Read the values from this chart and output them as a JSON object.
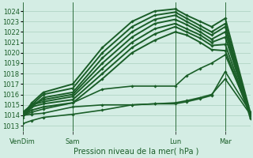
{
  "xlabel": "Pression niveau de la mer( hPa )",
  "bg_color": "#d4ede4",
  "grid_color": "#aacfbe",
  "line_color": "#1a5e28",
  "ylim": [
    1012.5,
    1024.8
  ],
  "yticks": [
    1013,
    1014,
    1015,
    1016,
    1017,
    1018,
    1019,
    1020,
    1021,
    1022,
    1023,
    1024
  ],
  "xtick_labels": [
    "VenDim",
    "Sam",
    "Lun",
    "Mar"
  ],
  "xtick_positions": [
    0.0,
    0.22,
    0.67,
    0.89
  ],
  "lines": [
    {
      "x": [
        0.0,
        0.04,
        0.09,
        0.22,
        0.35,
        0.48,
        0.58,
        0.67,
        0.72,
        0.78,
        0.83,
        0.89,
        1.0
      ],
      "y": [
        1014.0,
        1015.2,
        1016.2,
        1017.0,
        1020.5,
        1023.0,
        1024.0,
        1024.2,
        1023.6,
        1023.0,
        1022.5,
        1023.3,
        1014.3
      ],
      "lw": 1.4
    },
    {
      "x": [
        0.0,
        0.04,
        0.09,
        0.22,
        0.35,
        0.48,
        0.58,
        0.67,
        0.72,
        0.78,
        0.83,
        0.89,
        1.0
      ],
      "y": [
        1014.1,
        1015.0,
        1016.0,
        1016.6,
        1020.0,
        1022.5,
        1023.6,
        1023.9,
        1023.3,
        1022.6,
        1022.0,
        1022.8,
        1014.0
      ],
      "lw": 1.4
    },
    {
      "x": [
        0.0,
        0.04,
        0.09,
        0.22,
        0.35,
        0.48,
        0.58,
        0.67,
        0.72,
        0.78,
        0.83,
        0.89,
        1.0
      ],
      "y": [
        1013.8,
        1014.8,
        1015.7,
        1016.2,
        1019.5,
        1022.0,
        1023.2,
        1023.6,
        1023.0,
        1022.3,
        1021.7,
        1022.5,
        1013.7
      ],
      "lw": 1.4
    },
    {
      "x": [
        0.0,
        0.04,
        0.09,
        0.22,
        0.35,
        0.48,
        0.58,
        0.67,
        0.72,
        0.78,
        0.83,
        0.89,
        1.0
      ],
      "y": [
        1014.2,
        1015.0,
        1015.5,
        1016.0,
        1019.0,
        1021.5,
        1022.8,
        1023.2,
        1022.7,
        1022.0,
        1021.3,
        1022.0,
        1014.0
      ],
      "lw": 1.4
    },
    {
      "x": [
        0.0,
        0.04,
        0.09,
        0.22,
        0.35,
        0.48,
        0.58,
        0.67,
        0.72,
        0.78,
        0.83,
        0.89,
        1.0
      ],
      "y": [
        1014.3,
        1015.0,
        1015.3,
        1015.8,
        1018.5,
        1021.0,
        1022.3,
        1022.8,
        1022.3,
        1021.7,
        1021.0,
        1021.5,
        1014.1
      ],
      "lw": 1.4
    },
    {
      "x": [
        0.0,
        0.04,
        0.09,
        0.22,
        0.35,
        0.48,
        0.58,
        0.67,
        0.72,
        0.78,
        0.83,
        0.89,
        1.0
      ],
      "y": [
        1014.0,
        1014.8,
        1015.1,
        1015.5,
        1018.0,
        1020.5,
        1021.8,
        1022.5,
        1022.0,
        1021.4,
        1020.7,
        1020.8,
        1014.0
      ],
      "lw": 1.4
    },
    {
      "x": [
        0.0,
        0.04,
        0.09,
        0.22,
        0.35,
        0.48,
        0.58,
        0.67,
        0.72,
        0.78,
        0.83,
        0.89,
        1.0
      ],
      "y": [
        1014.0,
        1014.5,
        1014.8,
        1015.2,
        1017.5,
        1020.0,
        1021.2,
        1022.0,
        1021.7,
        1021.0,
        1020.3,
        1020.2,
        1014.0
      ],
      "lw": 1.4
    },
    {
      "x": [
        0.0,
        0.04,
        0.09,
        0.22,
        0.35,
        0.48,
        0.58,
        0.67,
        0.72,
        0.78,
        0.83,
        0.89,
        1.0
      ],
      "y": [
        1014.0,
        1014.3,
        1014.6,
        1015.2,
        1016.5,
        1016.8,
        1016.8,
        1016.8,
        1017.8,
        1018.5,
        1019.0,
        1019.8,
        1014.2
      ],
      "lw": 1.2
    },
    {
      "x": [
        0.0,
        0.04,
        0.09,
        0.22,
        0.35,
        0.48,
        0.58,
        0.67,
        0.72,
        0.78,
        0.83,
        0.89,
        1.0
      ],
      "y": [
        1013.2,
        1013.5,
        1013.8,
        1014.1,
        1014.5,
        1015.0,
        1015.1,
        1015.1,
        1015.3,
        1015.6,
        1015.9,
        1018.2,
        1014.3
      ],
      "lw": 1.2
    },
    {
      "x": [
        0.0,
        0.04,
        0.09,
        0.22,
        0.35,
        0.48,
        0.58,
        0.67,
        0.72,
        0.78,
        0.83,
        0.89,
        1.0
      ],
      "y": [
        1014.0,
        1014.1,
        1014.2,
        1014.8,
        1015.0,
        1015.0,
        1015.1,
        1015.2,
        1015.4,
        1015.7,
        1016.0,
        1017.5,
        1014.1
      ],
      "lw": 1.2
    }
  ],
  "marker_positions": {
    "dense": [
      0,
      1,
      2,
      3,
      4,
      5,
      6,
      7,
      8,
      9,
      10,
      11,
      12
    ],
    "marker": "D",
    "ms": 2.0
  }
}
